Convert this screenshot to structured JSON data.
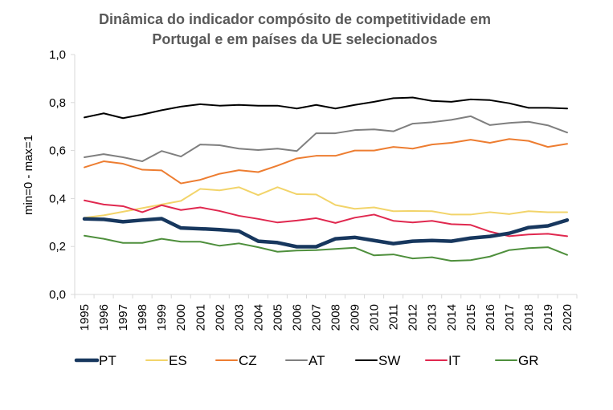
{
  "chart_data": {
    "type": "line",
    "title": [
      "Dinâmica do indicador compósito de competitividade em",
      "Portugal e em países da UE selecionados"
    ],
    "ylabel": "min=0 - max=1",
    "xlabel": "",
    "ylim": [
      0,
      1
    ],
    "yticks": [
      "0,0",
      "0,2",
      "0,4",
      "0,6",
      "0,8",
      "1,0"
    ],
    "grid": false,
    "legend_position": "bottom",
    "x": [
      "1995",
      "1996",
      "1997",
      "1998",
      "1999",
      "2000",
      "2001",
      "2002",
      "2003",
      "2004",
      "2005",
      "2006",
      "2007",
      "2008",
      "2009",
      "2010",
      "2011",
      "2012",
      "2013",
      "2014",
      "2015",
      "2016",
      "2017",
      "2018",
      "2019",
      "2020"
    ],
    "series": [
      {
        "name": "PT",
        "color": "#17375e",
        "bold": true,
        "values": [
          0.315,
          0.313,
          0.303,
          0.31,
          0.316,
          0.277,
          0.274,
          0.27,
          0.264,
          0.222,
          0.216,
          0.199,
          0.199,
          0.232,
          0.238,
          0.225,
          0.212,
          0.222,
          0.225,
          0.222,
          0.235,
          0.242,
          0.255,
          0.279,
          0.286,
          0.31
        ]
      },
      {
        "name": "ES",
        "color": "#f2d46a",
        "values": [
          0.32,
          0.33,
          0.345,
          0.36,
          0.375,
          0.39,
          0.44,
          0.434,
          0.447,
          0.414,
          0.447,
          0.418,
          0.417,
          0.373,
          0.357,
          0.363,
          0.347,
          0.348,
          0.347,
          0.333,
          0.333,
          0.343,
          0.335,
          0.347,
          0.343,
          0.343
        ]
      },
      {
        "name": "CZ",
        "color": "#ed7d31",
        "values": [
          0.53,
          0.555,
          0.545,
          0.52,
          0.517,
          0.463,
          0.478,
          0.503,
          0.518,
          0.51,
          0.537,
          0.567,
          0.578,
          0.578,
          0.6,
          0.6,
          0.615,
          0.608,
          0.625,
          0.632,
          0.645,
          0.632,
          0.648,
          0.64,
          0.615,
          0.628
        ]
      },
      {
        "name": "AT",
        "color": "#7f7f7f",
        "values": [
          0.572,
          0.585,
          0.572,
          0.555,
          0.598,
          0.575,
          0.625,
          0.622,
          0.608,
          0.602,
          0.608,
          0.598,
          0.672,
          0.672,
          0.685,
          0.688,
          0.68,
          0.712,
          0.718,
          0.728,
          0.743,
          0.706,
          0.715,
          0.72,
          0.705,
          0.675
        ]
      },
      {
        "name": "SW",
        "color": "#000000",
        "values": [
          0.738,
          0.755,
          0.735,
          0.75,
          0.768,
          0.783,
          0.793,
          0.787,
          0.79,
          0.787,
          0.787,
          0.775,
          0.79,
          0.775,
          0.79,
          0.803,
          0.818,
          0.821,
          0.807,
          0.803,
          0.813,
          0.81,
          0.797,
          0.778,
          0.778,
          0.775
        ]
      },
      {
        "name": "IT",
        "color": "#e0284f",
        "values": [
          0.392,
          0.375,
          0.368,
          0.343,
          0.372,
          0.352,
          0.363,
          0.348,
          0.328,
          0.315,
          0.3,
          0.308,
          0.318,
          0.298,
          0.32,
          0.333,
          0.307,
          0.3,
          0.307,
          0.293,
          0.29,
          0.262,
          0.243,
          0.25,
          0.253,
          0.243
        ]
      },
      {
        "name": "GR",
        "color": "#4e8f3c",
        "values": [
          0.245,
          0.232,
          0.215,
          0.215,
          0.232,
          0.22,
          0.22,
          0.203,
          0.213,
          0.197,
          0.178,
          0.183,
          0.185,
          0.19,
          0.195,
          0.163,
          0.167,
          0.15,
          0.155,
          0.14,
          0.143,
          0.158,
          0.185,
          0.193,
          0.197,
          0.165
        ]
      }
    ]
  }
}
